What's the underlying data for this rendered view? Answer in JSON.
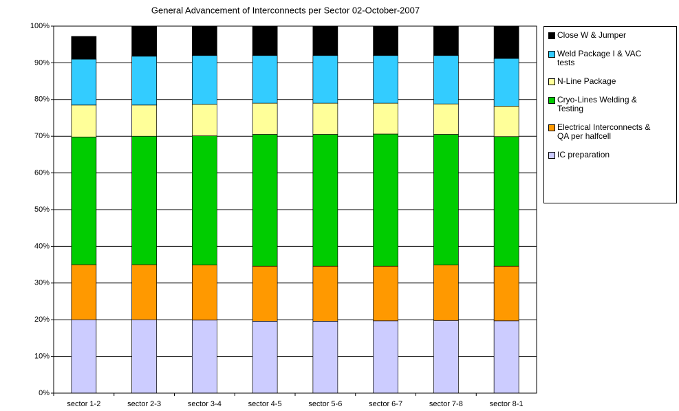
{
  "chart_data": {
    "type": "stacked_bar",
    "title": "General Advancement of Interconnects per Sector 02-October-2007",
    "categories": [
      "sector 1-2",
      "sector 2-3",
      "sector 3-4",
      "sector 4-5",
      "sector 5-6",
      "sector 6-7",
      "sector 7-8",
      "sector 8-1"
    ],
    "series": [
      {
        "name": "IC preparation",
        "color": "#ccccff",
        "values": [
          20.0,
          20.0,
          19.9,
          19.6,
          19.6,
          19.7,
          19.8,
          19.7
        ]
      },
      {
        "name": "Electrical Interconnects & QA per halfcell",
        "color": "#ff9900",
        "values": [
          15.0,
          15.0,
          15.0,
          15.0,
          15.0,
          14.9,
          15.1,
          14.9
        ]
      },
      {
        "name": "Cryo-Lines Welding & Testing",
        "color": "#00cc00",
        "values": [
          34.8,
          35.0,
          35.2,
          35.9,
          35.9,
          36.0,
          35.6,
          35.3
        ]
      },
      {
        "name": "N-Line Package",
        "color": "#ffff99",
        "values": [
          8.7,
          8.5,
          8.6,
          8.5,
          8.5,
          8.4,
          8.3,
          8.3
        ]
      },
      {
        "name": "Weld Package I & VAC tests",
        "color": "#33ccff",
        "values": [
          12.5,
          13.3,
          13.3,
          13.0,
          13.0,
          13.0,
          13.2,
          13.0
        ]
      },
      {
        "name": "Close W & Jumper",
        "color": "#000000",
        "values": [
          6.2,
          8.2,
          8.0,
          8.0,
          8.0,
          8.0,
          8.0,
          8.8
        ]
      }
    ],
    "ylim": [
      0,
      100
    ],
    "yticks": [
      {
        "value": 0,
        "label": "0%"
      },
      {
        "value": 10,
        "label": "10%"
      },
      {
        "value": 20,
        "label": "20%"
      },
      {
        "value": 30,
        "label": "30%"
      },
      {
        "value": 40,
        "label": "40%"
      },
      {
        "value": 50,
        "label": "50%"
      },
      {
        "value": 60,
        "label": "60%"
      },
      {
        "value": 70,
        "label": "70%"
      },
      {
        "value": 80,
        "label": "80%"
      },
      {
        "value": 90,
        "label": "90%"
      },
      {
        "value": 100,
        "label": "100%"
      }
    ],
    "grid": true,
    "legend": "right"
  }
}
